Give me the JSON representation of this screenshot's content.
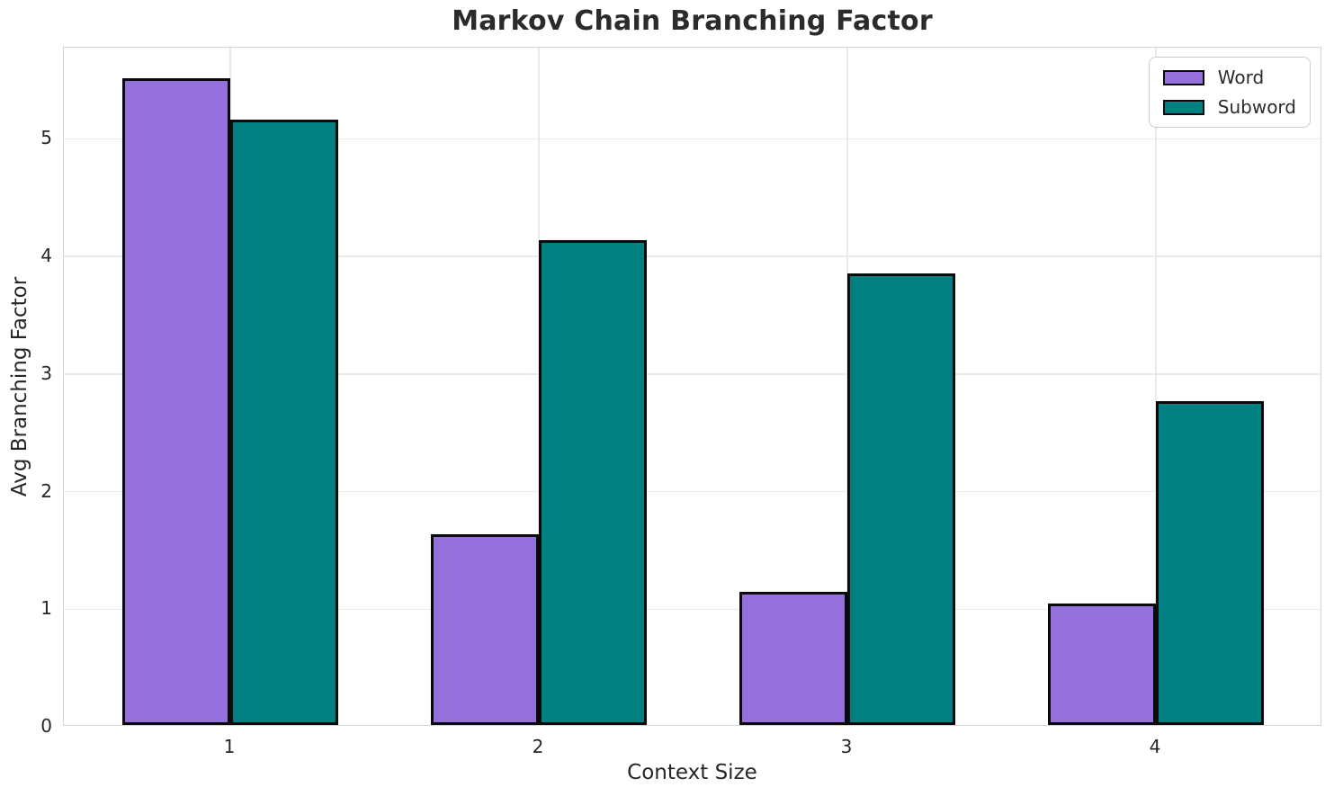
{
  "chart_data": {
    "type": "bar",
    "title": "Markov Chain Branching Factor",
    "xlabel": "Context Size",
    "ylabel": "Avg Branching Factor",
    "categories": [
      "1",
      "2",
      "3",
      "4"
    ],
    "series": [
      {
        "name": "Word",
        "color": "#9370DB",
        "values": [
          5.5,
          1.62,
          1.13,
          1.03
        ]
      },
      {
        "name": "Subword",
        "color": "#008080",
        "values": [
          5.15,
          4.12,
          3.84,
          2.75
        ]
      }
    ],
    "yticks": [
      0,
      1,
      2,
      3,
      4,
      5
    ],
    "ylim": [
      0,
      5.775
    ],
    "grid": true,
    "legend": {
      "position": "upper right",
      "labels": [
        "Word",
        "Subword"
      ]
    },
    "colors": {
      "bar_edge": "#0a0a0a",
      "grid": "#e9e9e9",
      "spine": "#d3d3d3",
      "text": "#262626",
      "legend_border": "#cccccc",
      "background": "#ffffff"
    }
  }
}
